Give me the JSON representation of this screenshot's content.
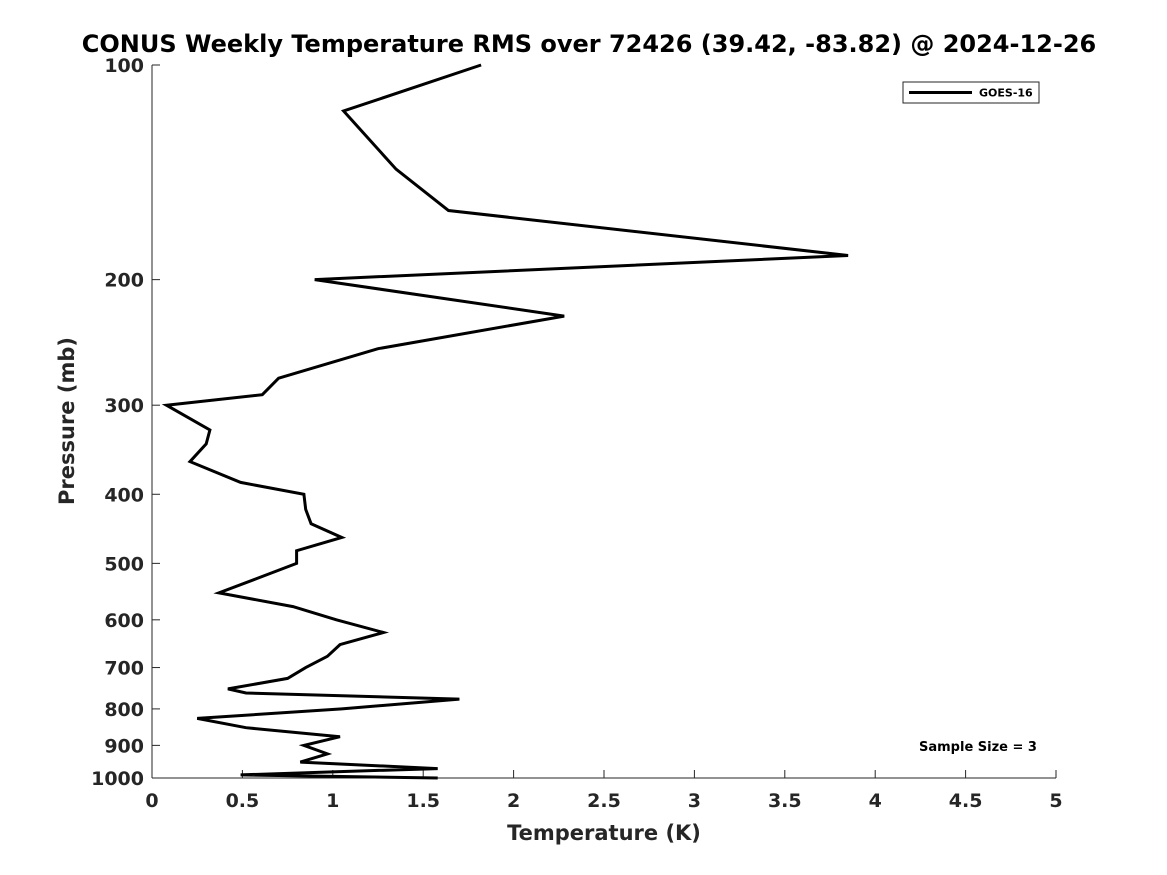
{
  "chart_data": {
    "type": "line",
    "title": "CONUS Weekly Temperature RMS over 72426 (39.42, -83.82) @ 2024-12-26",
    "xlabel": "Temperature (K)",
    "ylabel": "Pressure (mb)",
    "xlim": [
      0,
      5
    ],
    "ylim": [
      1000,
      100
    ],
    "yscale": "log",
    "x_ticks": [
      0,
      0.5,
      1,
      1.5,
      2,
      2.5,
      3,
      3.5,
      4,
      4.5,
      5
    ],
    "x_tick_labels": [
      "0",
      "0.5",
      "1",
      "1.5",
      "2",
      "2.5",
      "3",
      "3.5",
      "4",
      "4.5",
      "5"
    ],
    "y_ticks": [
      100,
      200,
      300,
      400,
      500,
      600,
      700,
      800,
      900,
      1000
    ],
    "y_tick_labels": [
      "100",
      "200",
      "300",
      "400",
      "500",
      "600",
      "700",
      "800",
      "900",
      "1000"
    ],
    "grid": false,
    "legend_position": "top-right",
    "series": [
      {
        "name": "GOES-16",
        "color": "#000000",
        "temperature": [
          1.82,
          1.06,
          1.35,
          1.64,
          3.85,
          0.9,
          2.28,
          1.25,
          0.7,
          0.61,
          0.08,
          0.32,
          0.3,
          0.21,
          0.49,
          0.84,
          0.85,
          0.88,
          1.05,
          0.8,
          0.8,
          0.58,
          0.37,
          0.78,
          1.02,
          1.28,
          1.04,
          0.97,
          0.85,
          0.75,
          0.42,
          0.52,
          1.7,
          1.05,
          0.25,
          0.52,
          1.04,
          0.84,
          0.97,
          0.82,
          1.58,
          1.02,
          0.49,
          1.58
        ],
        "pressure": [
          100,
          116,
          140,
          160,
          185,
          200,
          225,
          250,
          275,
          290,
          300,
          325,
          340,
          360,
          385,
          400,
          420,
          440,
          460,
          480,
          500,
          525,
          550,
          575,
          600,
          625,
          650,
          675,
          700,
          725,
          750,
          760,
          775,
          800,
          825,
          850,
          875,
          900,
          925,
          950,
          970,
          980,
          990,
          1000
        ]
      }
    ],
    "annotations": [
      "Sample Size = 3"
    ]
  }
}
